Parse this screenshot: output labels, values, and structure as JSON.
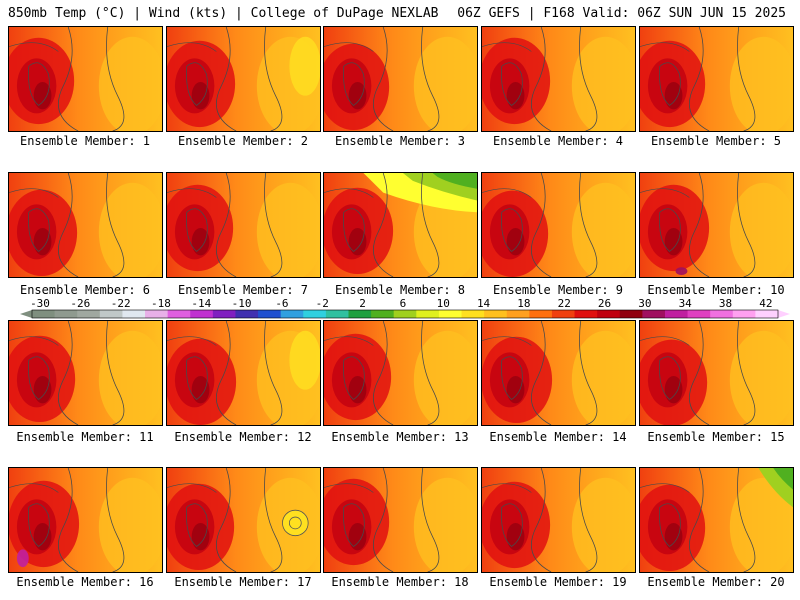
{
  "header": {
    "left": "850mb Temp (°C) | Wind (kts) | College of DuPage NEXLAB",
    "right": "06Z GEFS | F168 Valid: 06Z SUN JUN 15 2025"
  },
  "members": [
    {
      "label": "Ensemble Member: 1"
    },
    {
      "label": "Ensemble Member: 2"
    },
    {
      "label": "Ensemble Member: 3"
    },
    {
      "label": "Ensemble Member: 4"
    },
    {
      "label": "Ensemble Member: 5"
    },
    {
      "label": "Ensemble Member: 6"
    },
    {
      "label": "Ensemble Member: 7"
    },
    {
      "label": "Ensemble Member: 8"
    },
    {
      "label": "Ensemble Member: 9"
    },
    {
      "label": "Ensemble Member: 10"
    },
    {
      "label": "Ensemble Member: 11"
    },
    {
      "label": "Ensemble Member: 12"
    },
    {
      "label": "Ensemble Member: 13"
    },
    {
      "label": "Ensemble Member: 14"
    },
    {
      "label": "Ensemble Member: 15"
    },
    {
      "label": "Ensemble Member: 16"
    },
    {
      "label": "Ensemble Member: 17"
    },
    {
      "label": "Ensemble Member: 18"
    },
    {
      "label": "Ensemble Member: 19"
    },
    {
      "label": "Ensemble Member: 20"
    }
  ],
  "colorbar": {
    "ticks": [
      "-30",
      "-26",
      "-22",
      "-18",
      "-14",
      "-10",
      "-6",
      "-2",
      "2",
      "6",
      "10",
      "14",
      "18",
      "22",
      "26",
      "30",
      "34",
      "38",
      "42"
    ],
    "colors": [
      "#7f8f7f",
      "#8f9a8f",
      "#a0a8a0",
      "#c0c8c8",
      "#e0e8f0",
      "#e8b0e8",
      "#e060e0",
      "#c030d0",
      "#8020c0",
      "#4030b0",
      "#2050d0",
      "#30a0e0",
      "#30d0e0",
      "#30c0a0",
      "#20a040",
      "#50b020",
      "#a0d020",
      "#e0f020",
      "#ffff30",
      "#ffe020",
      "#ffc020",
      "#ffa020",
      "#ff7010",
      "#f04010",
      "#e01010",
      "#c00010",
      "#900010",
      "#a01060",
      "#c020a0",
      "#e040c0",
      "#f070e0",
      "#ffa0f0",
      "#ffd0ff"
    ]
  }
}
